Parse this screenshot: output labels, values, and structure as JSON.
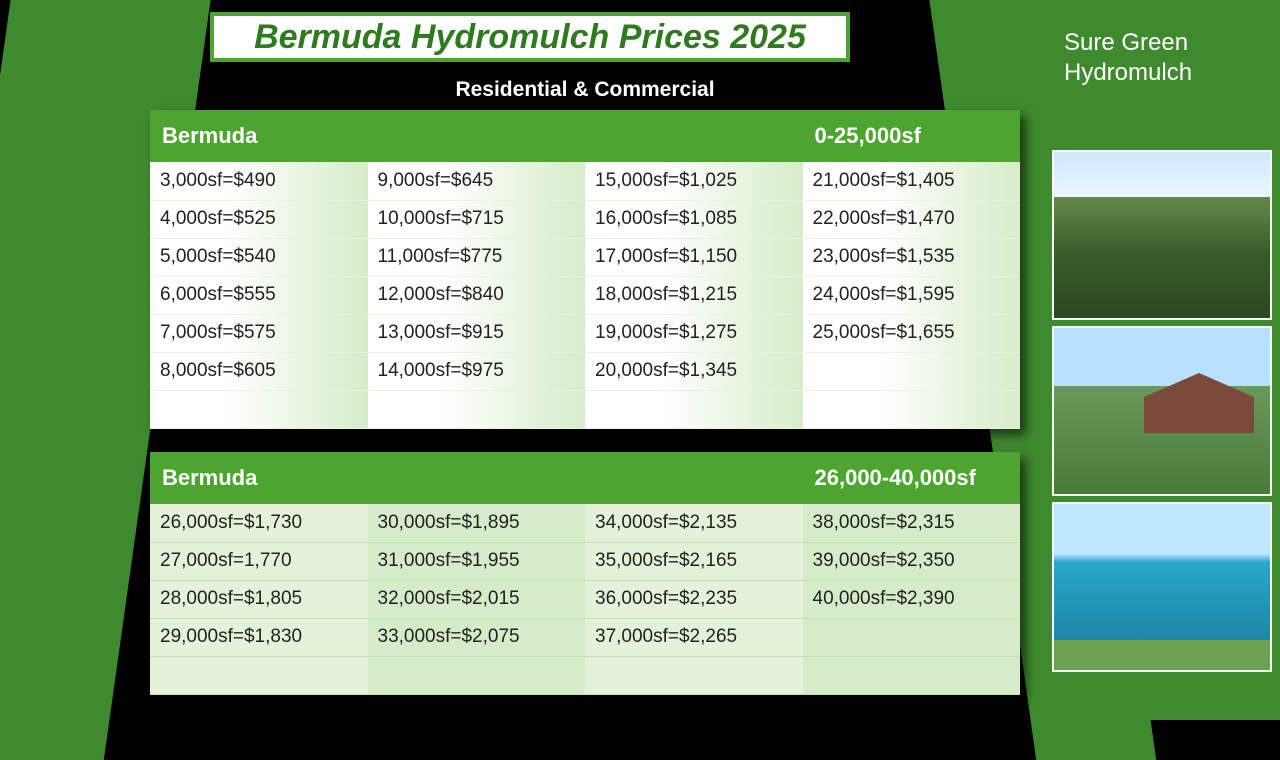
{
  "title": "Bermuda  Hydromulch Prices 2025",
  "subtitle": "Residential & Commercial",
  "brand_line1": "Sure Green",
  "brand_line2": "Hydromulch",
  "colors": {
    "accent_green": "#4ca52f",
    "dark_green_bg": "#3f8a2f",
    "page_bg": "#000000",
    "text_light": "#ffffff"
  },
  "table1": {
    "headers": [
      "Bermuda",
      "",
      "",
      "0-25,000sf"
    ],
    "rows": [
      [
        "3,000sf=$490",
        "9,000sf=$645",
        "15,000sf=$1,025",
        "21,000sf=$1,405"
      ],
      [
        "4,000sf=$525",
        "10,000sf=$715",
        "16,000sf=$1,085",
        "22,000sf=$1,470"
      ],
      [
        "5,000sf=$540",
        "11,000sf=$775",
        "17,000sf=$1,150",
        "23,000sf=$1,535"
      ],
      [
        "6,000sf=$555",
        "12,000sf=$840",
        "18,000sf=$1,215",
        "24,000sf=$1,595"
      ],
      [
        "7,000sf=$575",
        "13,000sf=$915",
        "19,000sf=$1,275",
        "25,000sf=$1,655"
      ],
      [
        "8,000sf=$605",
        "14,000sf=$975",
        "20,000sf=$1,345",
        ""
      ],
      [
        "",
        "",
        "",
        ""
      ]
    ]
  },
  "table2": {
    "headers": [
      "Bermuda",
      "",
      "",
      "26,000-40,000sf"
    ],
    "rows": [
      [
        "26,000sf=$1,730",
        "30,000sf=$1,895",
        "34,000sf=$2,135",
        "38,000sf=$2,315"
      ],
      [
        "27,000sf=1,770",
        "31,000sf=$1,955",
        "35,000sf=$2,165",
        "39,000sf=$2,350"
      ],
      [
        "28,000sf=$1,805",
        "32,000sf=$2,015",
        "36,000sf=$2,235",
        "40,000sf=$2,390"
      ],
      [
        "29,000sf=$1,830",
        "33,000sf=$2,075",
        "37,000sf=$2,265",
        ""
      ],
      [
        "",
        "",
        "",
        ""
      ]
    ]
  },
  "thumbnails": [
    {
      "name": "hydromulch-lawn-photo",
      "class": "lawn1"
    },
    {
      "name": "house-lawn-photo",
      "class": "house"
    },
    {
      "name": "pool-slope-photo",
      "class": "pool"
    }
  ]
}
